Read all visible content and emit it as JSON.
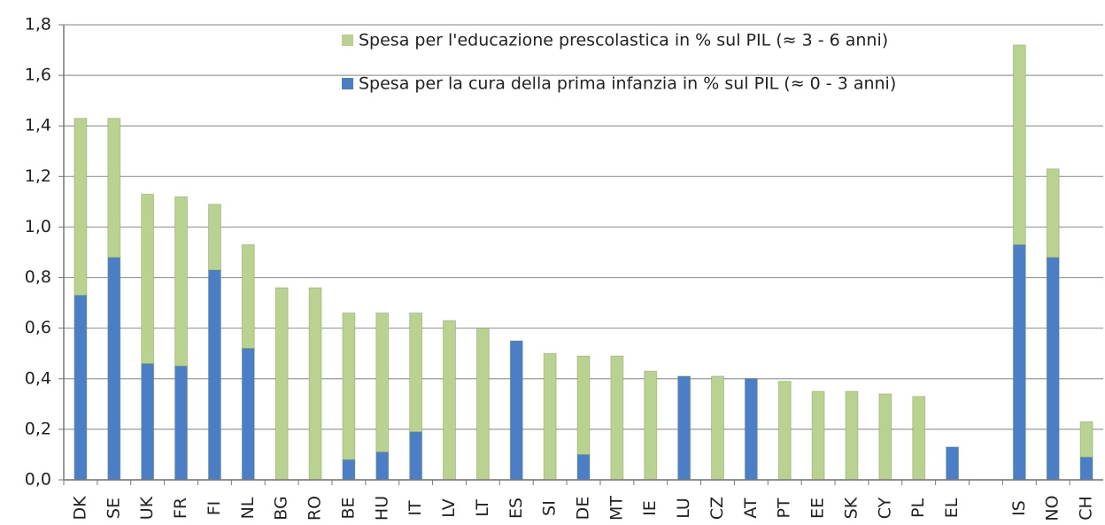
{
  "chart_data": {
    "type": "stacked-bar",
    "categories": [
      "DK",
      "SE",
      "UK",
      "FR",
      "FI",
      "NL",
      "BG",
      "RO",
      "BE",
      "HU",
      "IT",
      "LV",
      "LT",
      "ES",
      "SI",
      "DE",
      "MT",
      "IE",
      "LU",
      "CZ",
      "AT",
      "PT",
      "EE",
      "SK",
      "CY",
      "PL",
      "EL",
      null,
      "IS",
      "NO",
      "CH"
    ],
    "series": [
      {
        "name": "Spesa per la cura della prima infanzia in % sul PIL  (≈ 0 - 3 anni)",
        "color": "#4a7fc8",
        "values": [
          0.73,
          0.88,
          0.46,
          0.45,
          0.83,
          0.52,
          0,
          0,
          0.08,
          0.11,
          0.19,
          0,
          0,
          0.55,
          0,
          0.1,
          0,
          0,
          0.41,
          0,
          0.4,
          0,
          0,
          0,
          0,
          0,
          0.13,
          null,
          0.93,
          0.88,
          0.09
        ]
      },
      {
        "name": "Spesa per l'educazione prescolastica in % sul PIL (≈ 3 - 6 anni)",
        "color": "#b9d290",
        "values": [
          0.7,
          0.55,
          0.67,
          0.67,
          0.26,
          0.41,
          0.76,
          0.76,
          0.58,
          0.55,
          0.47,
          0.63,
          0.6,
          0,
          0.5,
          0.39,
          0.49,
          0.43,
          0,
          0.41,
          0,
          0.39,
          0.35,
          0.35,
          0.34,
          0.33,
          0,
          null,
          0.79,
          0.35,
          0.14
        ]
      }
    ],
    "ylim": [
      0,
      1.8
    ],
    "yticks": [
      {
        "value": 0,
        "label": "0,0"
      },
      {
        "value": 0.2,
        "label": "0,2"
      },
      {
        "value": 0.4,
        "label": "0,4"
      },
      {
        "value": 0.6,
        "label": "0,6"
      },
      {
        "value": 0.8,
        "label": "0,8"
      },
      {
        "value": 1.0,
        "label": "1,0"
      },
      {
        "value": 1.2,
        "label": "1,2"
      },
      {
        "value": 1.4,
        "label": "1,4"
      },
      {
        "value": 1.6,
        "label": "1,6"
      },
      {
        "value": 1.8,
        "label": "1,8"
      }
    ],
    "grid": true
  }
}
